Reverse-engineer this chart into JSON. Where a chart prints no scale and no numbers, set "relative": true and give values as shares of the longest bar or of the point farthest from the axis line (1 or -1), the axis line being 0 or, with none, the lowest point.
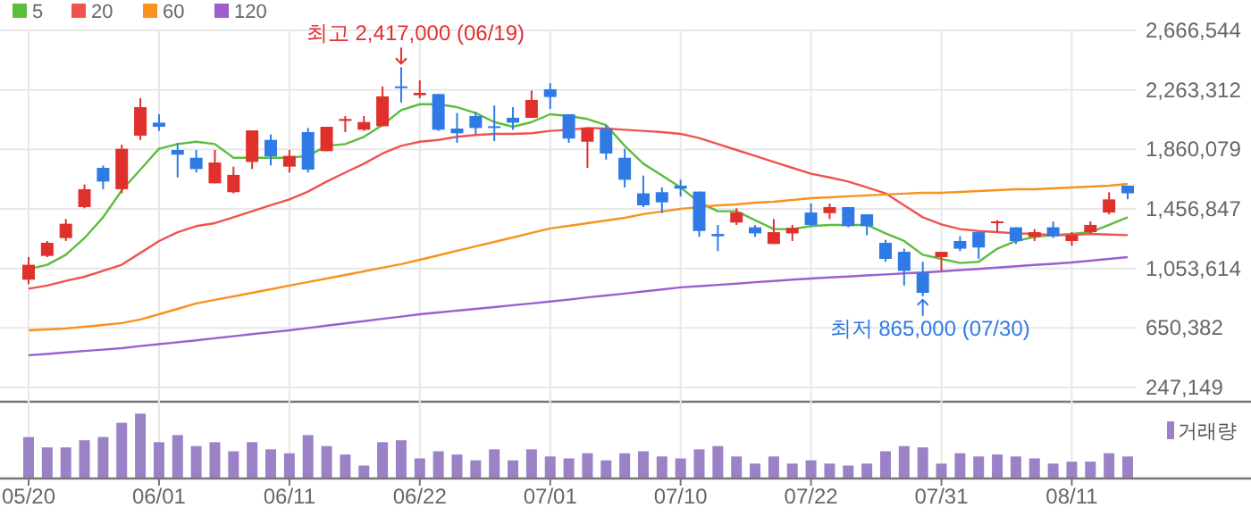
{
  "chart_data": [
    {
      "type": "candlestick",
      "ohlc": [
        [
          977000,
          1130000,
          945000,
          1078000
        ],
        [
          1138000,
          1239000,
          1130000,
          1227000
        ],
        [
          1259000,
          1388000,
          1239000,
          1356000
        ],
        [
          1469000,
          1622000,
          1461000,
          1590000
        ],
        [
          1735000,
          1751000,
          1590000,
          1642000
        ],
        [
          1590000,
          1892000,
          1562000,
          1864000
        ],
        [
          1953000,
          2207000,
          1924000,
          2146000
        ],
        [
          2041000,
          2098000,
          1985000,
          2013000
        ],
        [
          1856000,
          1904000,
          1670000,
          1824000
        ],
        [
          1803000,
          1856000,
          1703000,
          1727000
        ],
        [
          1630000,
          1856000,
          1630000,
          1771000
        ],
        [
          1570000,
          1743000,
          1562000,
          1687000
        ],
        [
          1775000,
          1989000,
          1727000,
          1989000
        ],
        [
          1924000,
          1961000,
          1751000,
          1812000
        ],
        [
          1743000,
          1856000,
          1703000,
          1816000
        ],
        [
          1977000,
          2005000,
          1703000,
          1723000
        ],
        [
          1848000,
          2013000,
          1848000,
          2013000
        ],
        [
          2053000,
          2086000,
          1977000,
          2066000
        ],
        [
          1993000,
          2086000,
          1985000,
          2045000
        ],
        [
          2017000,
          2287000,
          2017000,
          2219000
        ],
        [
          2287000,
          2417000,
          2178000,
          2275000
        ],
        [
          2227000,
          2328000,
          2207000,
          2243000
        ],
        [
          2235000,
          2235000,
          1985000,
          1993000
        ],
        [
          2001000,
          2106000,
          1904000,
          1969000
        ],
        [
          2086000,
          2114000,
          1965000,
          2005000
        ],
        [
          2017000,
          2158000,
          1916000,
          2005000
        ],
        [
          2074000,
          2146000,
          1993000,
          2041000
        ],
        [
          2074000,
          2259000,
          2074000,
          2195000
        ],
        [
          2267000,
          2308000,
          2134000,
          2215000
        ],
        [
          2098000,
          2098000,
          1904000,
          1933000
        ],
        [
          1912000,
          2005000,
          1735000,
          2005000
        ],
        [
          2001000,
          2025000,
          1791000,
          1832000
        ],
        [
          1803000,
          1864000,
          1602000,
          1654000
        ],
        [
          1562000,
          1683000,
          1469000,
          1481000
        ],
        [
          1570000,
          1602000,
          1428000,
          1501000
        ],
        [
          1614000,
          1654000,
          1541000,
          1594000
        ],
        [
          1574000,
          1574000,
          1267000,
          1307000
        ],
        [
          1287000,
          1348000,
          1170000,
          1271000
        ],
        [
          1364000,
          1461000,
          1348000,
          1432000
        ],
        [
          1332000,
          1348000,
          1267000,
          1291000
        ],
        [
          1219000,
          1388000,
          1219000,
          1299000
        ],
        [
          1291000,
          1348000,
          1239000,
          1328000
        ],
        [
          1432000,
          1493000,
          1340000,
          1348000
        ],
        [
          1428000,
          1493000,
          1388000,
          1469000
        ],
        [
          1469000,
          1469000,
          1332000,
          1340000
        ],
        [
          1420000,
          1420000,
          1279000,
          1340000
        ],
        [
          1227000,
          1247000,
          1098000,
          1118000
        ],
        [
          1166000,
          1187000,
          937000,
          1037000
        ],
        [
          1025000,
          1098000,
          865000,
          888000
        ],
        [
          1130000,
          1166000,
          1037000,
          1166000
        ],
        [
          1239000,
          1271000,
          1170000,
          1187000
        ],
        [
          1299000,
          1299000,
          1118000,
          1195000
        ],
        [
          1360000,
          1380000,
          1299000,
          1372000
        ],
        [
          1332000,
          1332000,
          1219000,
          1239000
        ],
        [
          1267000,
          1320000,
          1239000,
          1299000
        ],
        [
          1332000,
          1372000,
          1259000,
          1271000
        ],
        [
          1239000,
          1299000,
          1207000,
          1279000
        ],
        [
          1299000,
          1372000,
          1291000,
          1348000
        ],
        [
          1432000,
          1570000,
          1420000,
          1521000
        ],
        [
          1614000,
          1614000,
          1521000,
          1562000
        ]
      ],
      "series": [
        {
          "name": "5",
          "type": "line",
          "color": "#5cbd3c",
          "values": [
            1049000,
            1078000,
            1146000,
            1259000,
            1400000,
            1582000,
            1723000,
            1864000,
            1896000,
            1912000,
            1896000,
            1803000,
            1803000,
            1803000,
            1803000,
            1816000,
            1884000,
            1896000,
            1945000,
            2025000,
            2126000,
            2166000,
            2166000,
            2146000,
            2106000,
            2045000,
            2013000,
            2045000,
            2098000,
            2086000,
            2066000,
            2025000,
            1884000,
            1763000,
            1683000,
            1602000,
            1501000,
            1441000,
            1441000,
            1380000,
            1320000,
            1320000,
            1340000,
            1348000,
            1348000,
            1348000,
            1291000,
            1239000,
            1146000,
            1118000,
            1090000,
            1098000,
            1187000,
            1239000,
            1267000,
            1279000,
            1287000,
            1299000,
            1348000,
            1400000
          ]
        },
        {
          "name": "20",
          "type": "line",
          "color": "#ef5350",
          "values": [
            916000,
            937000,
            969000,
            997000,
            1037000,
            1078000,
            1158000,
            1239000,
            1299000,
            1340000,
            1360000,
            1400000,
            1441000,
            1481000,
            1521000,
            1574000,
            1642000,
            1703000,
            1763000,
            1832000,
            1884000,
            1912000,
            1924000,
            1945000,
            1957000,
            1965000,
            1965000,
            1969000,
            1985000,
            1993000,
            2005000,
            2001000,
            1993000,
            1985000,
            1977000,
            1965000,
            1937000,
            1896000,
            1856000,
            1816000,
            1775000,
            1735000,
            1695000,
            1670000,
            1642000,
            1602000,
            1562000,
            1481000,
            1400000,
            1352000,
            1320000,
            1307000,
            1299000,
            1291000,
            1287000,
            1279000,
            1279000,
            1287000,
            1283000,
            1279000
          ]
        },
        {
          "name": "60",
          "type": "line",
          "color": "#f7931e",
          "values": [
            634000,
            640000,
            646000,
            658000,
            670000,
            683000,
            707000,
            743000,
            779000,
            816000,
            840000,
            864000,
            888000,
            912000,
            937000,
            961000,
            985000,
            1009000,
            1033000,
            1058000,
            1082000,
            1112000,
            1142000,
            1173000,
            1203000,
            1233000,
            1263000,
            1294000,
            1324000,
            1342000,
            1360000,
            1378000,
            1396000,
            1421000,
            1439000,
            1457000,
            1469000,
            1481000,
            1487000,
            1499000,
            1505000,
            1517000,
            1529000,
            1535000,
            1542000,
            1548000,
            1554000,
            1560000,
            1566000,
            1566000,
            1572000,
            1578000,
            1584000,
            1590000,
            1590000,
            1596000,
            1602000,
            1608000,
            1614000,
            1626000
          ]
        },
        {
          "name": "120",
          "type": "line",
          "color": "#9b5fd0",
          "values": [
            465000,
            474000,
            484000,
            494000,
            503000,
            513000,
            527000,
            540000,
            553000,
            566000,
            580000,
            594000,
            608000,
            621000,
            634000,
            650000,
            666000,
            681000,
            696000,
            712000,
            727000,
            743000,
            755000,
            767000,
            779000,
            791000,
            804000,
            816000,
            829000,
            842000,
            857000,
            870000,
            883000,
            897000,
            911000,
            925000,
            933000,
            942000,
            950000,
            960000,
            968000,
            977000,
            985000,
            992000,
            998000,
            1006000,
            1013000,
            1020000,
            1026000,
            1033000,
            1042000,
            1050000,
            1059000,
            1068000,
            1077000,
            1085000,
            1094000,
            1106000,
            1118000,
            1130000
          ]
        }
      ],
      "ylim": [
        150000,
        2666544
      ],
      "yticks": [
        {
          "value": 247149,
          "label": "247,149"
        },
        {
          "value": 650382,
          "label": "650,382"
        },
        {
          "value": 1053614,
          "label": "1,053,614"
        },
        {
          "value": 1456847,
          "label": "1,456,847"
        },
        {
          "value": 1860079,
          "label": "1,860,079"
        },
        {
          "value": 2263312,
          "label": "2,263,312"
        },
        {
          "value": 2666544,
          "label": "2,666,544"
        }
      ],
      "grid": true,
      "legend": "top left",
      "tick_labels": "y",
      "annotations": [
        "최고 2,417,000 (06/19)",
        "최저 865,000 (07/30)"
      ]
    },
    {
      "type": "bar",
      "relative": true,
      "categories": [
        "05/20",
        null,
        null,
        null,
        null,
        null,
        null,
        "06/01",
        null,
        null,
        null,
        null,
        null,
        null,
        "06/11",
        null,
        null,
        null,
        null,
        null,
        null,
        "06/22",
        null,
        null,
        null,
        null,
        null,
        null,
        "07/01",
        null,
        null,
        null,
        null,
        null,
        null,
        "07/10",
        null,
        null,
        null,
        null,
        null,
        null,
        "07/22",
        null,
        null,
        null,
        null,
        null,
        null,
        "07/31",
        null,
        null,
        null,
        null,
        null,
        null,
        "08/11",
        null,
        null,
        null
      ],
      "series": [
        {
          "name": "거래량",
          "color": "#9b82c6",
          "values": [
            0.64,
            0.48,
            0.48,
            0.59,
            0.64,
            0.86,
            1,
            0.56,
            0.67,
            0.5,
            0.56,
            0.42,
            0.56,
            0.45,
            0.39,
            0.67,
            0.5,
            0.37,
            0.2,
            0.56,
            0.59,
            0.31,
            0.42,
            0.37,
            0.28,
            0.45,
            0.28,
            0.45,
            0.34,
            0.31,
            0.39,
            0.28,
            0.39,
            0.42,
            0.34,
            0.31,
            0.45,
            0.5,
            0.34,
            0.23,
            0.34,
            0.23,
            0.28,
            0.23,
            0.2,
            0.23,
            0.42,
            0.5,
            0.48,
            0.23,
            0.39,
            0.34,
            0.37,
            0.34,
            0.31,
            0.23,
            0.26,
            0.26,
            0.39,
            0.34
          ]
        }
      ],
      "grid": "x",
      "legend": "top right",
      "tick_labels": "x"
    }
  ]
}
